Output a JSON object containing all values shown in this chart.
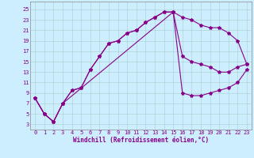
{
  "xlabel": "Windchill (Refroidissement éolien,°C)",
  "bg_color": "#cceeff",
  "line_color": "#880088",
  "xlim": [
    -0.5,
    23.5
  ],
  "ylim": [
    2.0,
    26.5
  ],
  "xticks": [
    0,
    1,
    2,
    3,
    4,
    5,
    6,
    7,
    8,
    9,
    10,
    11,
    12,
    13,
    14,
    15,
    16,
    17,
    18,
    19,
    20,
    21,
    22,
    23
  ],
  "yticks": [
    3,
    5,
    7,
    9,
    11,
    13,
    15,
    17,
    19,
    21,
    23,
    25
  ],
  "grid_color": "#aacccc",
  "line1_x": [
    0,
    1,
    2,
    3,
    4,
    5,
    6,
    7,
    8,
    9,
    10,
    11,
    12,
    13,
    14,
    15,
    16,
    17,
    18,
    19,
    20,
    21,
    22,
    23
  ],
  "line1_y": [
    8.0,
    5.0,
    3.5,
    7.0,
    9.5,
    10.0,
    13.5,
    16.0,
    18.5,
    19.0,
    20.5,
    21.0,
    22.5,
    23.5,
    24.5,
    24.5,
    23.5,
    23.0,
    22.0,
    21.5,
    21.5,
    20.5,
    19.0,
    14.5
  ],
  "line2_x": [
    0,
    1,
    2,
    3,
    4,
    5,
    6,
    7,
    8,
    9,
    10,
    11,
    12,
    13,
    14,
    15,
    16,
    17,
    18,
    19,
    20,
    21,
    22,
    23
  ],
  "line2_y": [
    8.0,
    5.0,
    3.5,
    7.0,
    9.5,
    10.0,
    13.5,
    16.0,
    18.5,
    19.0,
    20.5,
    21.0,
    22.5,
    23.5,
    24.5,
    24.5,
    16.0,
    15.0,
    14.5,
    14.0,
    13.0,
    13.0,
    14.0,
    14.5
  ],
  "line3_x": [
    0,
    1,
    2,
    3,
    15,
    16,
    17,
    18,
    19,
    20,
    21,
    22,
    23
  ],
  "line3_y": [
    8.0,
    5.0,
    3.5,
    7.0,
    24.5,
    9.0,
    8.5,
    8.5,
    9.0,
    9.5,
    10.0,
    11.0,
    13.5
  ],
  "tick_fontsize": 5.0,
  "xlabel_fontsize": 5.5,
  "marker_size": 3.0,
  "line_width": 0.8
}
